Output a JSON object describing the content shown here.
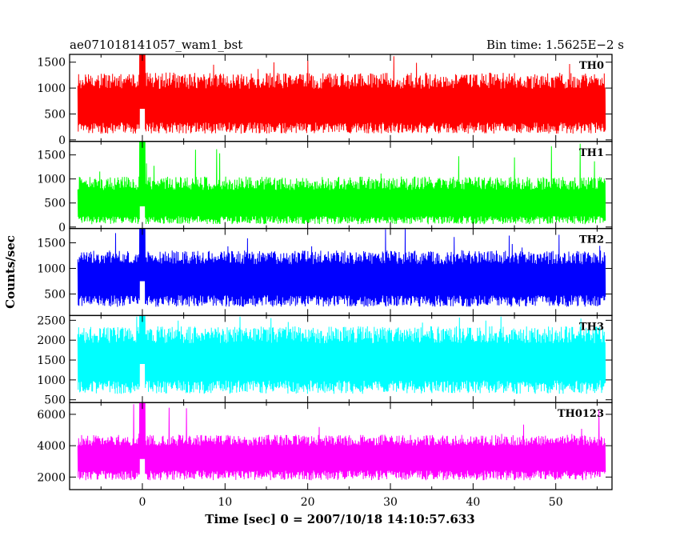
{
  "header": {
    "left": "ae071018141057_wam1_bst",
    "right": "Bin time: 1.5625E−2 s"
  },
  "axes": {
    "xlabel": "Time [sec] 0 = 2007/10/18 14:10:57.633",
    "ylabel": "Counts/sec"
  },
  "chart_data": {
    "type": "line",
    "title": "ae071018141057_wam1_bst",
    "subtitle": "Bin time: 1.5625E−2 s",
    "xlabel": "Time [sec] 0 = 2007/10/18 14:10:57.633",
    "ylabel": "Counts/sec",
    "xlim": [
      -8.8,
      56.8
    ],
    "xticks": [
      0,
      10,
      20,
      30,
      40,
      50
    ],
    "x_data_range": [
      -7.8,
      56.0
    ],
    "bin_time_s": 0.015625,
    "shared_x": true,
    "grid": false,
    "legend": "none",
    "panels": [
      {
        "name": "TH0",
        "color": "#ff0000",
        "ylim": [
          -30,
          1650
        ],
        "yticks": [
          0,
          500,
          1000,
          1500
        ],
        "mean": 600,
        "low_typical": 120,
        "high_typical": 1300,
        "peak": 1650,
        "spikes": [
          {
            "x": 0.0,
            "y": 1650
          }
        ]
      },
      {
        "name": "TH1",
        "color": "#00ff00",
        "ylim": [
          -30,
          1780
        ],
        "yticks": [
          0,
          500,
          1000,
          1500
        ],
        "mean": 430,
        "low_typical": 60,
        "high_typical": 1050,
        "peak": 1780,
        "spikes": [
          {
            "x": 0.0,
            "y": 1780
          }
        ]
      },
      {
        "name": "TH2",
        "color": "#0000ff",
        "ylim": [
          80,
          1780
        ],
        "yticks": [
          500,
          1000,
          1500
        ],
        "mean": 750,
        "low_typical": 250,
        "high_typical": 1350,
        "peak": 1780,
        "spikes": [
          {
            "x": 0.0,
            "y": 1780
          }
        ]
      },
      {
        "name": "TH3",
        "color": "#00ffff",
        "ylim": [
          430,
          2620
        ],
        "yticks": [
          500,
          1000,
          1500,
          2000,
          2500
        ],
        "mean": 1400,
        "low_typical": 650,
        "high_typical": 2350,
        "peak": 2620,
        "spikes": [
          {
            "x": 0.0,
            "y": 2620
          }
        ]
      },
      {
        "name": "TH0123",
        "color": "#ff00ff",
        "ylim": [
          1200,
          6750
        ],
        "yticks": [
          2000,
          4000,
          6000
        ],
        "mean": 3150,
        "low_typical": 1800,
        "high_typical": 4700,
        "peak": 6750,
        "spikes": [
          {
            "x": 0.0,
            "y": 6750
          }
        ]
      }
    ]
  }
}
